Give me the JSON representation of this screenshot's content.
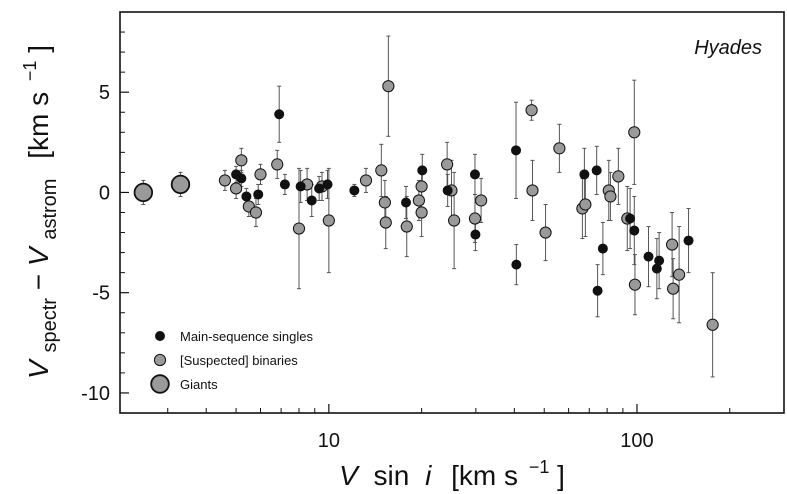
{
  "chart_data": {
    "type": "scatter",
    "title": "Hyades",
    "xlabel": {
      "v": "V",
      "sin": "sin",
      "i": "i",
      "unit": "[km s",
      "exp": "−1",
      "close": "]"
    },
    "ylabel": {
      "v1": "V",
      "sub1": "spectr",
      "minus": " − ",
      "v2": "V",
      "sub2": "astrom",
      "unit": "[km s",
      "exp": "−1",
      "close": "]"
    },
    "x_scale": "log",
    "xlim": [
      2.1,
      300
    ],
    "ylim": [
      -11,
      9
    ],
    "x_ticks": [
      {
        "value": 10,
        "label": "10"
      },
      {
        "value": 100,
        "label": "100"
      }
    ],
    "y_ticks": [
      {
        "value": 5,
        "label": "5"
      },
      {
        "value": 0,
        "label": "0"
      },
      {
        "value": -5,
        "label": "-5"
      },
      {
        "value": -10,
        "label": "-10"
      }
    ],
    "grid": false,
    "legend_position": "bottom-left",
    "series": [
      {
        "name": "Main-sequence singles",
        "marker": "small",
        "color": "#111111",
        "points": [
          {
            "x": 5.0,
            "y": 0.9,
            "err": 0.4
          },
          {
            "x": 5.2,
            "y": 0.7,
            "err": 0.4
          },
          {
            "x": 5.4,
            "y": -0.2,
            "err": 0.4
          },
          {
            "x": 5.9,
            "y": -0.1,
            "err": 0.5
          },
          {
            "x": 6.9,
            "y": 3.9,
            "err": 1.4
          },
          {
            "x": 7.2,
            "y": 0.4,
            "err": 0.5
          },
          {
            "x": 8.1,
            "y": 0.3,
            "err": 0.8
          },
          {
            "x": 8.8,
            "y": -0.4,
            "err": 0.8
          },
          {
            "x": 9.3,
            "y": 0.2,
            "err": 0.6
          },
          {
            "x": 9.9,
            "y": 0.4,
            "err": 0.7
          },
          {
            "x": 12.1,
            "y": 0.1,
            "err": 0.3
          },
          {
            "x": 17.8,
            "y": -0.5,
            "err": 0.8
          },
          {
            "x": 20.1,
            "y": 1.1,
            "err": 0.8
          },
          {
            "x": 24.3,
            "y": 0.1,
            "err": 0.8
          },
          {
            "x": 29.8,
            "y": 0.9,
            "err": 1.0
          },
          {
            "x": 29.9,
            "y": -2.1,
            "err": 0.8
          },
          {
            "x": 40.5,
            "y": 2.1,
            "err": 2.4
          },
          {
            "x": 40.6,
            "y": -3.6,
            "err": 1.0
          },
          {
            "x": 67.5,
            "y": 0.9,
            "err": 1.3
          },
          {
            "x": 74.0,
            "y": 1.1,
            "err": 1.2
          },
          {
            "x": 74.5,
            "y": -4.9,
            "err": 1.3
          },
          {
            "x": 77.5,
            "y": -2.8,
            "err": 1.3
          },
          {
            "x": 95.0,
            "y": -1.3,
            "err": 1.5
          },
          {
            "x": 98.0,
            "y": -1.9,
            "err": 1.7
          },
          {
            "x": 109.0,
            "y": -3.2,
            "err": 1.5
          },
          {
            "x": 116.0,
            "y": -3.8,
            "err": 1.5
          },
          {
            "x": 118.0,
            "y": -3.4,
            "err": 1.4
          },
          {
            "x": 147.0,
            "y": -2.4,
            "err": 1.6
          }
        ]
      },
      {
        "name": "[Suspected] binaries",
        "marker": "medium",
        "color": "#9a9a9a",
        "points": [
          {
            "x": 4.6,
            "y": 0.6,
            "err": 0.5
          },
          {
            "x": 5.0,
            "y": 0.2,
            "err": 0.5
          },
          {
            "x": 5.2,
            "y": 1.6,
            "err": 0.6
          },
          {
            "x": 5.5,
            "y": -0.7,
            "err": 0.5
          },
          {
            "x": 5.8,
            "y": -1.0,
            "err": 0.7
          },
          {
            "x": 6.0,
            "y": 0.9,
            "err": 0.5
          },
          {
            "x": 6.8,
            "y": 1.4,
            "err": 0.7
          },
          {
            "x": 8.0,
            "y": -1.8,
            "err": 3.0
          },
          {
            "x": 8.5,
            "y": 0.4,
            "err": 0.8
          },
          {
            "x": 9.5,
            "y": 0.3,
            "err": 0.7
          },
          {
            "x": 10.0,
            "y": -1.4,
            "err": 2.6
          },
          {
            "x": 13.2,
            "y": 0.6,
            "err": 0.6
          },
          {
            "x": 14.8,
            "y": 1.1,
            "err": 1.3
          },
          {
            "x": 15.2,
            "y": -0.5,
            "err": 1.1
          },
          {
            "x": 15.3,
            "y": -1.5,
            "err": 1.3
          },
          {
            "x": 15.6,
            "y": 5.3,
            "err": 2.5
          },
          {
            "x": 17.9,
            "y": -1.7,
            "err": 1.5
          },
          {
            "x": 19.6,
            "y": -0.4,
            "err": 1.0
          },
          {
            "x": 20.0,
            "y": 0.3,
            "err": 0.9
          },
          {
            "x": 20.0,
            "y": -1.0,
            "err": 1.2
          },
          {
            "x": 24.2,
            "y": 1.4,
            "err": 1.1
          },
          {
            "x": 25.0,
            "y": 0.1,
            "err": 1.5
          },
          {
            "x": 25.5,
            "y": -1.4,
            "err": 2.4
          },
          {
            "x": 29.8,
            "y": -1.3,
            "err": 1.2
          },
          {
            "x": 31.2,
            "y": -0.4,
            "err": 1.1
          },
          {
            "x": 45.5,
            "y": 4.1,
            "err": 0.5
          },
          {
            "x": 45.8,
            "y": 0.1,
            "err": 1.5
          },
          {
            "x": 50.5,
            "y": -2.0,
            "err": 1.4
          },
          {
            "x": 56.0,
            "y": 2.2,
            "err": 1.2
          },
          {
            "x": 66.5,
            "y": -0.8,
            "err": 1.5
          },
          {
            "x": 68.0,
            "y": -0.6,
            "err": 1.6
          },
          {
            "x": 81.0,
            "y": 0.1,
            "err": 1.5
          },
          {
            "x": 82.0,
            "y": -0.2,
            "err": 1.2
          },
          {
            "x": 87.0,
            "y": 0.8,
            "err": 1.4
          },
          {
            "x": 93.0,
            "y": -1.3,
            "err": 1.6
          },
          {
            "x": 98.0,
            "y": 3.0,
            "err": 2.6
          },
          {
            "x": 98.5,
            "y": -4.6,
            "err": 1.5
          },
          {
            "x": 130.0,
            "y": -2.6,
            "err": 1.6
          },
          {
            "x": 131.0,
            "y": -4.8,
            "err": 1.5
          },
          {
            "x": 137.0,
            "y": -4.1,
            "err": 2.4
          },
          {
            "x": 176.0,
            "y": -6.6,
            "err": 2.6
          }
        ]
      },
      {
        "name": "Giants",
        "marker": "large",
        "color": "#9a9a9a",
        "points": [
          {
            "x": 2.5,
            "y": 0.0,
            "err": 0.6
          },
          {
            "x": 3.3,
            "y": 0.4,
            "err": 0.6
          }
        ]
      }
    ]
  }
}
